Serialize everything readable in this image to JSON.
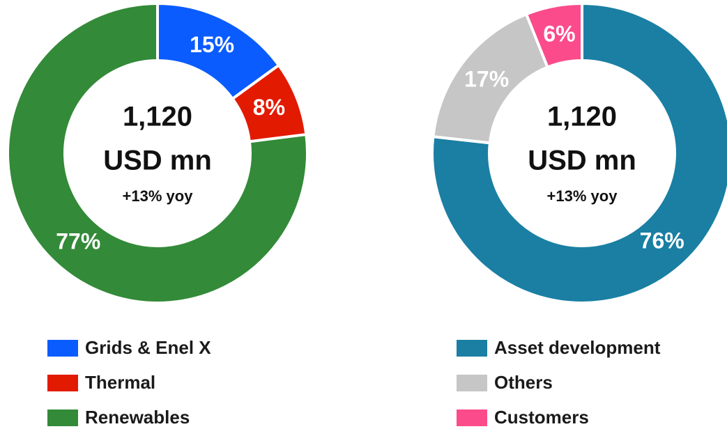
{
  "chart_data": [
    {
      "type": "donut",
      "center_lines": [
        "1,120",
        "USD mn",
        "+13% yoy"
      ],
      "categories": [
        "Grids & Enel X",
        "Thermal",
        "Renewables"
      ],
      "values": [
        15,
        8,
        77
      ],
      "value_labels": [
        "15%",
        "8%",
        "77%"
      ],
      "colors": [
        "#0a5cff",
        "#e21a00",
        "#338a38"
      ]
    },
    {
      "type": "donut",
      "center_lines": [
        "1,120",
        "USD mn",
        "+13% yoy"
      ],
      "categories": [
        "Asset development",
        "Others",
        "Customers"
      ],
      "values": [
        76,
        17,
        6
      ],
      "value_labels": [
        "76%",
        "17%",
        "6%"
      ],
      "colors": [
        "#1a7fa3",
        "#c6c6c6",
        "#fb4b8a"
      ]
    }
  ]
}
